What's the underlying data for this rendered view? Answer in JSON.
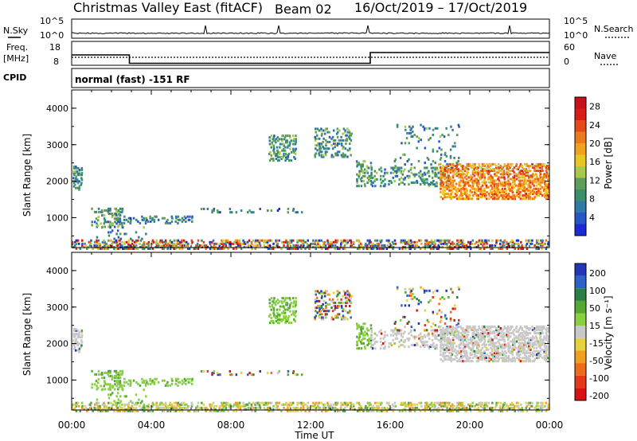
{
  "title": {
    "station": "Christmas Valley East (fitACF)",
    "beam": "Beam 02",
    "dates": "16/Oct/2019 – 17/Oct/2019"
  },
  "labels": {
    "nsky": "N.Sky",
    "nsearch": "N.Search",
    "freq_line1": "Freq.",
    "freq_line2": "[MHz]",
    "nave": "Nave",
    "cpid": "CPID",
    "cpid_value": "normal (fast) -151 RF",
    "slant_range": "Slant Range [km]",
    "time_axis": "Time UT",
    "noise_tick_high": "10^5",
    "noise_tick_low": "10^0"
  },
  "colors": {
    "power": [
      "#1a2bd6",
      "#2756c8",
      "#2f79a8",
      "#3a8f6a",
      "#5e9e5a",
      "#a8c94a",
      "#e8c624",
      "#f0a21c",
      "#ec7a1c",
      "#e44a18",
      "#d81e14",
      "#c8101a"
    ],
    "velocity": [
      "#2436b8",
      "#2f62c8",
      "#2a7f45",
      "#56a832",
      "#88d040",
      "#c8c8c8",
      "#e6d23c",
      "#f0a020",
      "#ec6c1a",
      "#e43818",
      "#d81212"
    ]
  },
  "chart_data": [
    {
      "type": "line",
      "name": "noise",
      "x_range_hours": [
        0,
        24
      ],
      "left_axis": {
        "label": "N.Sky",
        "ticks": [
          "10^0",
          "10^5"
        ]
      },
      "right_axis": {
        "label": "N.Search",
        "ticks": [
          "10^0",
          "10^5"
        ]
      },
      "spikes_hours": [
        6.7,
        10.4,
        14.9,
        22.0
      ],
      "note": "Sky noise near baseline with small spikes"
    },
    {
      "type": "line",
      "name": "frequency",
      "left_axis": {
        "ticks": [
          8,
          18
        ],
        "unit": "MHz"
      },
      "right_axis": {
        "ticks": [
          0,
          60
        ],
        "label": "Nave"
      },
      "freq_steps": [
        {
          "start": 0,
          "end": 2.9,
          "value": 13
        },
        {
          "start": 2.9,
          "end": 15.0,
          "value": 9.5
        },
        {
          "start": 15.0,
          "end": 24.0,
          "value": 14
        }
      ],
      "nave_level": 22
    },
    {
      "type": "heatmap",
      "name": "power",
      "xlabel": "Time UT",
      "ylabel": "Slant Range [km]",
      "x_range_hours": [
        0,
        24
      ],
      "ylim": [
        180,
        4500
      ],
      "yticks": [
        1000,
        2000,
        3000,
        4000
      ],
      "xticks": [
        "00:00",
        "04:00",
        "08:00",
        "12:00",
        "16:00",
        "20:00",
        "00:00"
      ],
      "colorbar": {
        "label": "Power [dB]",
        "ticks": [
          4,
          8,
          12,
          16,
          20,
          24,
          28
        ],
        "range": [
          0,
          30
        ]
      }
    },
    {
      "type": "heatmap",
      "name": "velocity",
      "xlabel": "Time UT",
      "ylabel": "Slant Range [km]",
      "x_range_hours": [
        0,
        24
      ],
      "ylim": [
        180,
        4500
      ],
      "yticks": [
        1000,
        2000,
        3000,
        4000
      ],
      "xticks": [
        "00:00",
        "04:00",
        "08:00",
        "12:00",
        "16:00",
        "20:00",
        "00:00"
      ],
      "colorbar": {
        "label": "Velocity [m s⁻¹]",
        "ticks": [
          200,
          100,
          50,
          15,
          -15,
          -50,
          -100,
          -200
        ]
      }
    }
  ],
  "scatter_regions": [
    {
      "t0": 0.05,
      "t1": 0.5,
      "r0": 1800,
      "r1": 2450,
      "p": 0.55,
      "pw": 8,
      "vel": "gray"
    },
    {
      "t0": 1.0,
      "t1": 2.6,
      "r0": 780,
      "r1": 1300,
      "p": 0.45,
      "pw": 8,
      "vel": "green"
    },
    {
      "t0": 2.2,
      "t1": 6.0,
      "r0": 880,
      "r1": 1080,
      "p": 0.3,
      "pw": 6,
      "vel": "green"
    },
    {
      "t0": 6.5,
      "t1": 11.5,
      "r0": 1180,
      "r1": 1280,
      "p": 0.2,
      "pw": 6,
      "vel": "mix"
    },
    {
      "t0": 1.0,
      "t1": 3.8,
      "r0": 450,
      "r1": 900,
      "p": 0.12,
      "pw": 7,
      "vel": "green"
    },
    {
      "t0": 9.9,
      "t1": 11.2,
      "r0": 2600,
      "r1": 3300,
      "p": 0.45,
      "pw": 8,
      "vel": "green"
    },
    {
      "t0": 12.2,
      "t1": 14.0,
      "r0": 2700,
      "r1": 3500,
      "p": 0.35,
      "pw": 8,
      "vel": "mix"
    },
    {
      "t0": 14.3,
      "t1": 15.0,
      "r0": 1900,
      "r1": 2600,
      "p": 0.45,
      "pw": 9,
      "vel": "green"
    },
    {
      "t0": 15.0,
      "t1": 19.0,
      "r0": 1900,
      "r1": 2400,
      "p": 0.35,
      "pw": 8,
      "vel": "gray"
    },
    {
      "t0": 16.2,
      "t1": 19.5,
      "r0": 2400,
      "r1": 3600,
      "p": 0.1,
      "pw": 7,
      "vel": "mix"
    },
    {
      "t0": 18.5,
      "t1": 24.0,
      "r0": 1550,
      "r1": 2500,
      "p": 0.65,
      "pw": 19,
      "vel": "gray"
    },
    {
      "t0": 0.0,
      "t1": 24.0,
      "r0": 180,
      "r1": 420,
      "p": 0.55,
      "pw": 10,
      "vel": "lowband"
    }
  ]
}
